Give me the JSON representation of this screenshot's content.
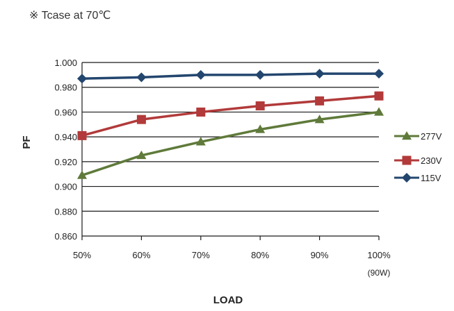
{
  "note": "※ Tcase at 70℃",
  "chart_data": {
    "type": "line",
    "categories": [
      "50%",
      "60%",
      "70%",
      "80%",
      "90%",
      "100%"
    ],
    "category_sublabels": [
      "",
      "",
      "",
      "",
      "",
      "(90W)"
    ],
    "xlabel": "LOAD",
    "ylabel": "PF",
    "ylim": [
      0.86,
      1.0
    ],
    "yticks": [
      0.86,
      0.88,
      0.9,
      0.92,
      0.94,
      0.96,
      0.98,
      1.0
    ],
    "ytick_labels": [
      "0.860",
      "0.880",
      "0.900",
      "0.920",
      "0.940",
      "0.960",
      "0.980",
      "1.000"
    ],
    "grid": "horizontal",
    "legend_position": "right",
    "series": [
      {
        "name": "277V",
        "color": "#5f7a3a",
        "marker": "triangle",
        "values": [
          0.909,
          0.925,
          0.936,
          0.946,
          0.954,
          0.96
        ]
      },
      {
        "name": "230V",
        "color": "#b23a3a",
        "marker": "square",
        "values": [
          0.941,
          0.954,
          0.96,
          0.965,
          0.969,
          0.973
        ]
      },
      {
        "name": "115V",
        "color": "#23466e",
        "marker": "diamond",
        "values": [
          0.987,
          0.988,
          0.99,
          0.99,
          0.991,
          0.991
        ]
      }
    ]
  }
}
